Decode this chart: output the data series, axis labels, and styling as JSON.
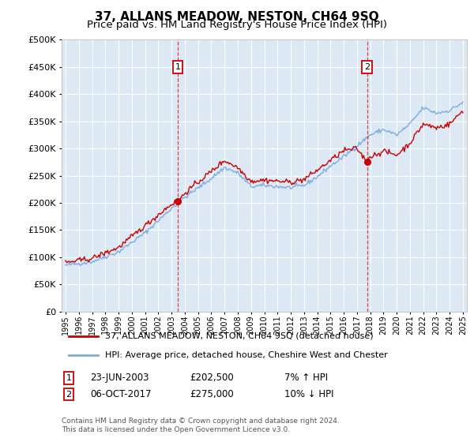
{
  "title": "37, ALLANS MEADOW, NESTON, CH64 9SQ",
  "subtitle": "Price paid vs. HM Land Registry's House Price Index (HPI)",
  "ylim": [
    0,
    500000
  ],
  "ytick_vals": [
    0,
    50000,
    100000,
    150000,
    200000,
    250000,
    300000,
    350000,
    400000,
    450000,
    500000
  ],
  "xlim_start": 1994.7,
  "xlim_end": 2025.3,
  "bg_color": "#dce9f5",
  "grid_color": "#ffffff",
  "sale1_x": 2003.48,
  "sale1_y": 202500,
  "sale2_x": 2017.76,
  "sale2_y": 275000,
  "legend_label_red": "37, ALLANS MEADOW, NESTON, CH64 9SQ (detached house)",
  "legend_label_blue": "HPI: Average price, detached house, Cheshire West and Chester",
  "annotation1_date": "23-JUN-2003",
  "annotation1_price": "£202,500",
  "annotation1_hpi": "7% ↑ HPI",
  "annotation2_date": "06-OCT-2017",
  "annotation2_price": "£275,000",
  "annotation2_hpi": "10% ↓ HPI",
  "footer1": "Contains HM Land Registry data © Crown copyright and database right 2024.",
  "footer2": "This data is licensed under the Open Government Licence v3.0.",
  "red_color": "#cc0000",
  "blue_color": "#7aade0",
  "title_fontsize": 11,
  "subtitle_fontsize": 9.5
}
